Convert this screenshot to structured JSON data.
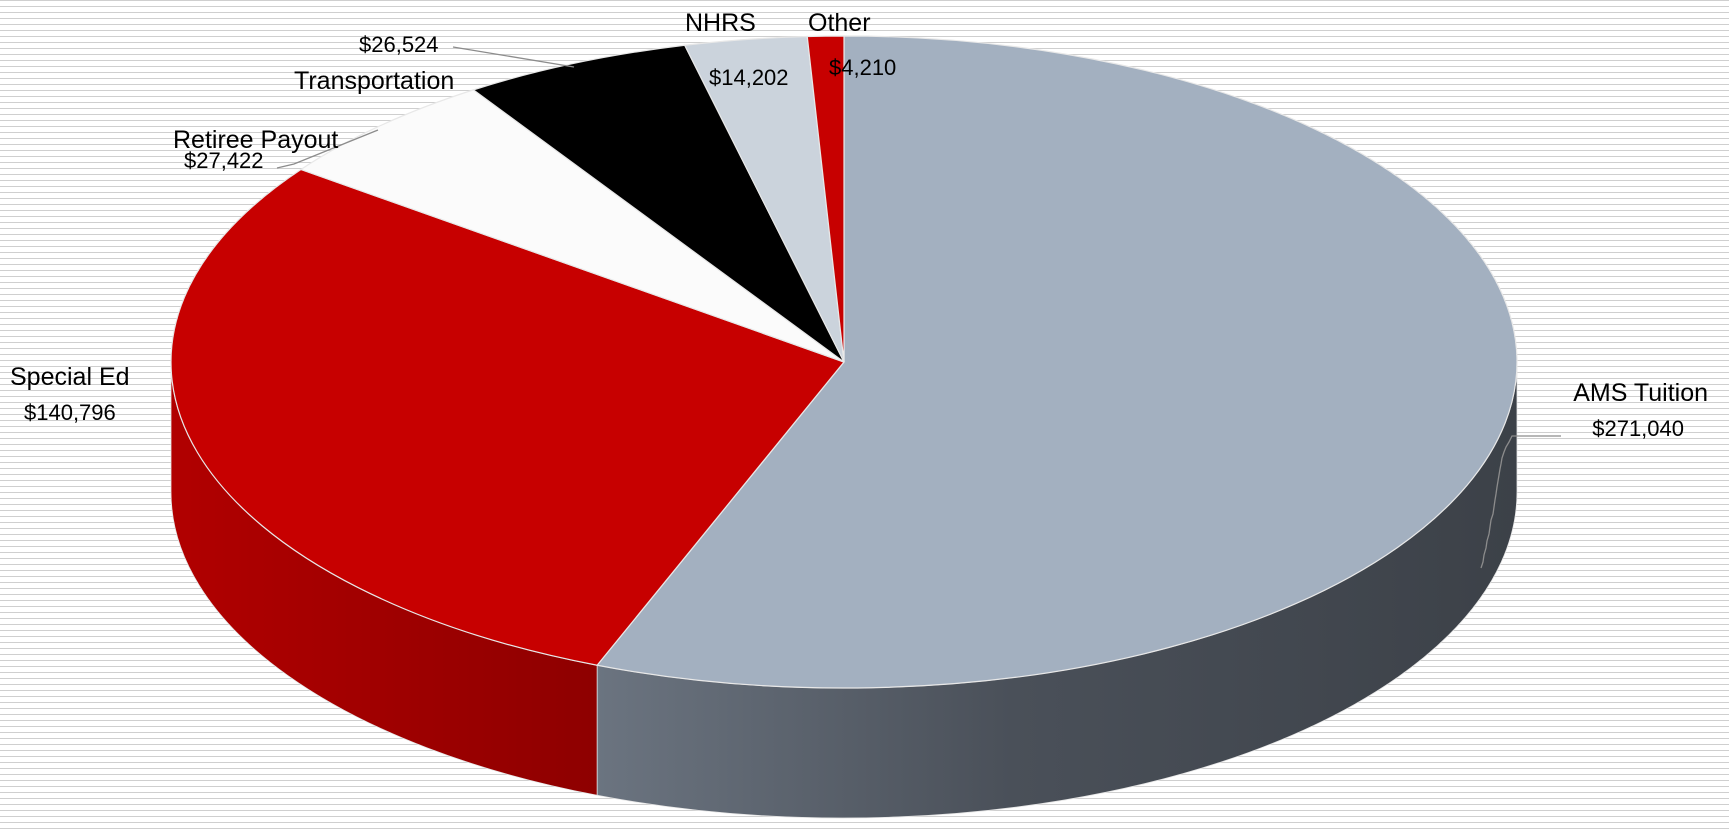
{
  "chart_data": {
    "type": "pie",
    "style": "3d",
    "grid": true,
    "legend": "none",
    "slices": [
      {
        "name": "AMS Tuition",
        "value": 271040,
        "label": "$271,040",
        "color": "#a3b0c0",
        "side_color": "#454b53"
      },
      {
        "name": "Special Ed",
        "value": 140796,
        "label": "$140,796",
        "color": "#c70000",
        "side_color": "#a10000"
      },
      {
        "name": "Retiree Payout",
        "value": 27422,
        "label": "$27,422",
        "color": "#fbfbfb",
        "side_color": "#d6d6d6"
      },
      {
        "name": "Transportation",
        "value": 26524,
        "label": "$26,524",
        "color": "#000000",
        "side_color": "#000000"
      },
      {
        "name": "NHRS",
        "value": 14202,
        "label": "$14,202",
        "color": "#cbd3dc",
        "side_color": "#9aa3ad"
      },
      {
        "name": "Other",
        "value": 4210,
        "label": "$4,210",
        "color": "#c70000",
        "side_color": "#a10000"
      }
    ]
  }
}
